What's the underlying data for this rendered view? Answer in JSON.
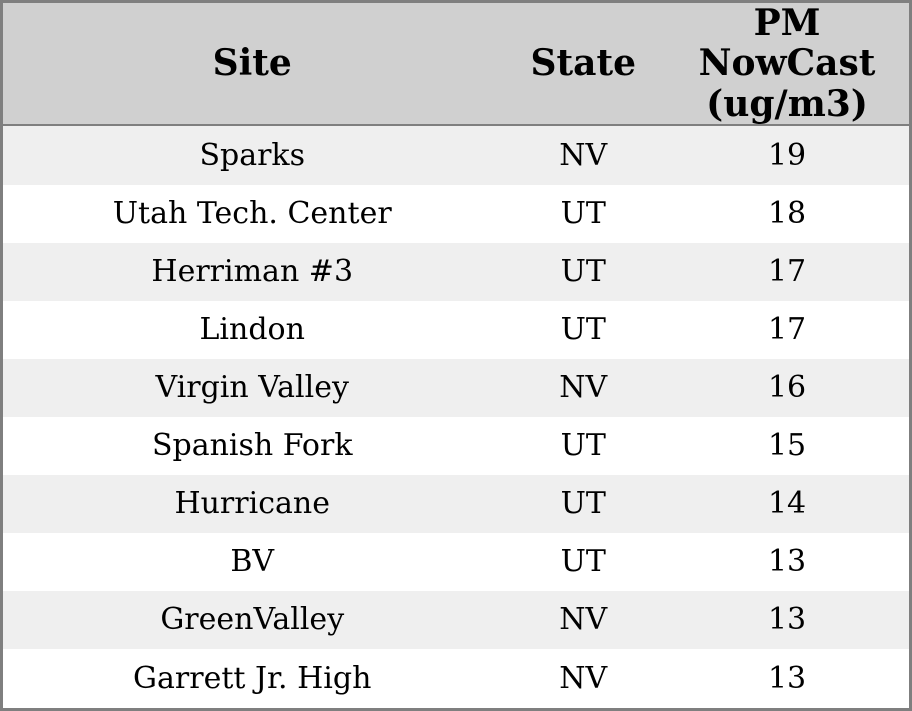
{
  "chart_data": {
    "type": "table",
    "title": "",
    "columns": [
      "Site",
      "State",
      "PM NowCast (ug/m3)"
    ],
    "rows": [
      [
        "Sparks",
        "NV",
        19
      ],
      [
        "Utah Tech. Center",
        "UT",
        18
      ],
      [
        "Herriman #3",
        "UT",
        17
      ],
      [
        "Lindon",
        "UT",
        17
      ],
      [
        "Virgin Valley",
        "NV",
        16
      ],
      [
        "Spanish Fork",
        "UT",
        15
      ],
      [
        "Hurricane",
        "UT",
        14
      ],
      [
        "BV",
        "UT",
        13
      ],
      [
        "GreenValley",
        "NV",
        13
      ],
      [
        "Garrett Jr. High",
        "NV",
        13
      ]
    ],
    "layout_hints": {
      "zebra_striping": true,
      "first_data_row_shaded": true,
      "text_alignment": "center"
    }
  },
  "theme": {
    "header-bg": "#d0d0d0",
    "row-stripe": "#efefef",
    "row-bg": "#ffffff",
    "border-color": "#7f7f7f",
    "text-color": "#000000"
  }
}
